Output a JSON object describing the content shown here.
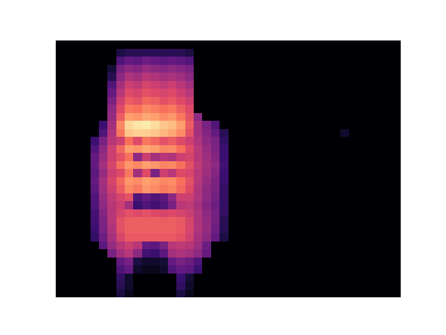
{
  "chart_data": {
    "type": "heatmap",
    "color": "magma",
    "tick_labels": false,
    "zlim": [
      0,
      100
    ],
    "cells": [
      [
        0,
        0,
        0,
        0,
        0,
        0,
        0,
        0,
        0,
        0,
        0,
        0,
        0,
        0,
        0,
        0,
        0,
        0,
        0,
        0,
        0,
        0,
        0,
        0,
        0,
        0,
        0,
        0,
        0,
        0,
        0,
        0,
        0,
        0,
        0,
        0,
        0,
        0,
        0,
        0
      ],
      [
        0,
        0,
        0,
        0,
        0,
        0,
        0,
        12,
        15,
        15,
        15,
        15,
        15,
        15,
        15,
        12,
        0,
        0,
        0,
        0,
        0,
        0,
        0,
        0,
        0,
        0,
        0,
        0,
        0,
        0,
        0,
        0,
        0,
        0,
        0,
        0,
        0,
        0,
        0,
        0
      ],
      [
        0,
        0,
        0,
        0,
        0,
        0,
        0,
        25,
        30,
        28,
        32,
        30,
        28,
        30,
        28,
        25,
        0,
        0,
        0,
        0,
        0,
        0,
        0,
        0,
        0,
        0,
        0,
        0,
        0,
        0,
        0,
        0,
        0,
        0,
        0,
        0,
        0,
        0,
        0,
        0
      ],
      [
        0,
        0,
        0,
        0,
        0,
        0,
        10,
        35,
        40,
        38,
        42,
        40,
        38,
        40,
        38,
        35,
        0,
        0,
        0,
        0,
        0,
        0,
        0,
        0,
        0,
        0,
        0,
        0,
        0,
        0,
        0,
        0,
        0,
        0,
        0,
        0,
        0,
        0,
        0,
        0
      ],
      [
        0,
        0,
        0,
        0,
        0,
        0,
        15,
        40,
        48,
        45,
        50,
        48,
        45,
        47,
        44,
        40,
        0,
        0,
        0,
        0,
        0,
        0,
        0,
        0,
        0,
        0,
        0,
        0,
        0,
        0,
        0,
        0,
        0,
        0,
        0,
        0,
        0,
        0,
        0,
        0
      ],
      [
        0,
        0,
        0,
        0,
        0,
        0,
        25,
        45,
        55,
        52,
        58,
        55,
        52,
        55,
        50,
        45,
        0,
        0,
        0,
        0,
        0,
        0,
        0,
        0,
        0,
        0,
        0,
        0,
        0,
        0,
        0,
        0,
        0,
        0,
        0,
        0,
        0,
        0,
        0,
        0
      ],
      [
        0,
        0,
        0,
        0,
        0,
        0,
        30,
        50,
        60,
        58,
        62,
        60,
        58,
        60,
        55,
        50,
        0,
        0,
        0,
        0,
        0,
        0,
        0,
        0,
        0,
        0,
        0,
        0,
        0,
        0,
        0,
        0,
        0,
        0,
        0,
        0,
        0,
        0,
        0,
        0
      ],
      [
        0,
        0,
        0,
        0,
        0,
        0,
        35,
        55,
        65,
        62,
        68,
        66,
        62,
        64,
        60,
        55,
        0,
        0,
        0,
        0,
        0,
        0,
        0,
        0,
        0,
        0,
        0,
        0,
        0,
        0,
        0,
        0,
        0,
        0,
        0,
        0,
        0,
        0,
        0,
        0
      ],
      [
        0,
        0,
        0,
        0,
        0,
        0,
        40,
        60,
        72,
        70,
        75,
        73,
        70,
        72,
        66,
        60,
        0,
        0,
        0,
        0,
        0,
        0,
        0,
        0,
        0,
        0,
        0,
        0,
        0,
        0,
        0,
        0,
        0,
        0,
        0,
        0,
        0,
        0,
        0,
        0
      ],
      [
        0,
        0,
        0,
        0,
        0,
        0,
        42,
        65,
        80,
        78,
        82,
        80,
        76,
        78,
        72,
        62,
        40,
        0,
        0,
        0,
        0,
        0,
        0,
        0,
        0,
        0,
        0,
        0,
        0,
        0,
        0,
        0,
        0,
        0,
        0,
        0,
        0,
        0,
        0,
        0
      ],
      [
        0,
        0,
        0,
        0,
        0,
        20,
        45,
        75,
        92,
        95,
        96,
        93,
        88,
        86,
        80,
        65,
        45,
        35,
        25,
        0,
        0,
        0,
        0,
        0,
        0,
        0,
        0,
        0,
        0,
        0,
        0,
        0,
        0,
        0,
        0,
        0,
        0,
        0,
        0,
        0
      ],
      [
        0,
        0,
        0,
        0,
        0,
        25,
        48,
        72,
        88,
        90,
        90,
        88,
        85,
        82,
        76,
        62,
        45,
        38,
        30,
        15,
        0,
        0,
        0,
        0,
        0,
        0,
        0,
        0,
        0,
        0,
        0,
        0,
        0,
        8,
        0,
        0,
        0,
        0,
        0,
        0
      ],
      [
        0,
        0,
        0,
        0,
        20,
        35,
        50,
        55,
        70,
        60,
        72,
        68,
        62,
        65,
        60,
        55,
        48,
        40,
        35,
        18,
        0,
        0,
        0,
        0,
        0,
        0,
        0,
        0,
        0,
        0,
        0,
        0,
        0,
        0,
        0,
        0,
        0,
        0,
        0,
        0
      ],
      [
        0,
        0,
        0,
        0,
        25,
        40,
        55,
        68,
        80,
        78,
        82,
        80,
        75,
        76,
        70,
        60,
        50,
        42,
        36,
        20,
        0,
        0,
        0,
        0,
        0,
        0,
        0,
        0,
        0,
        0,
        0,
        0,
        0,
        0,
        0,
        0,
        0,
        0,
        0,
        0
      ],
      [
        0,
        0,
        0,
        0,
        30,
        42,
        55,
        62,
        70,
        40,
        55,
        45,
        50,
        48,
        55,
        58,
        50,
        44,
        38,
        20,
        0,
        0,
        0,
        0,
        0,
        0,
        0,
        0,
        0,
        0,
        0,
        0,
        0,
        0,
        0,
        0,
        0,
        0,
        0,
        0
      ],
      [
        0,
        0,
        0,
        0,
        30,
        45,
        58,
        70,
        78,
        75,
        80,
        78,
        74,
        75,
        70,
        62,
        52,
        45,
        40,
        22,
        0,
        0,
        0,
        0,
        0,
        0,
        0,
        0,
        0,
        0,
        0,
        0,
        0,
        0,
        0,
        0,
        0,
        0,
        0,
        0
      ],
      [
        0,
        0,
        0,
        0,
        28,
        42,
        55,
        60,
        72,
        45,
        60,
        35,
        55,
        50,
        60,
        58,
        50,
        44,
        38,
        20,
        0,
        0,
        0,
        0,
        0,
        0,
        0,
        0,
        0,
        0,
        0,
        0,
        0,
        0,
        0,
        0,
        0,
        0,
        0,
        0
      ],
      [
        0,
        0,
        0,
        0,
        30,
        45,
        58,
        68,
        78,
        76,
        80,
        78,
        75,
        76,
        70,
        62,
        50,
        42,
        36,
        20,
        0,
        0,
        0,
        0,
        0,
        0,
        0,
        0,
        0,
        0,
        0,
        0,
        0,
        0,
        0,
        0,
        0,
        0,
        0,
        0
      ],
      [
        0,
        0,
        0,
        0,
        28,
        44,
        55,
        65,
        75,
        72,
        78,
        76,
        72,
        74,
        68,
        60,
        48,
        40,
        35,
        18,
        0,
        0,
        0,
        0,
        0,
        0,
        0,
        0,
        0,
        0,
        0,
        0,
        0,
        0,
        0,
        0,
        0,
        0,
        0,
        0
      ],
      [
        0,
        0,
        0,
        0,
        25,
        42,
        52,
        58,
        62,
        25,
        30,
        25,
        28,
        40,
        55,
        55,
        48,
        40,
        34,
        18,
        0,
        0,
        0,
        0,
        0,
        0,
        0,
        0,
        0,
        0,
        0,
        0,
        0,
        0,
        0,
        0,
        0,
        0,
        0,
        0
      ],
      [
        0,
        0,
        0,
        0,
        25,
        40,
        50,
        55,
        45,
        20,
        25,
        22,
        25,
        35,
        50,
        52,
        46,
        38,
        32,
        18,
        0,
        0,
        0,
        0,
        0,
        0,
        0,
        0,
        0,
        0,
        0,
        0,
        0,
        0,
        0,
        0,
        0,
        0,
        0,
        0
      ],
      [
        0,
        0,
        0,
        0,
        22,
        38,
        50,
        58,
        62,
        60,
        62,
        60,
        58,
        60,
        58,
        54,
        48,
        40,
        34,
        18,
        0,
        0,
        0,
        0,
        0,
        0,
        0,
        0,
        0,
        0,
        0,
        0,
        0,
        0,
        0,
        0,
        0,
        0,
        0,
        0
      ],
      [
        0,
        0,
        0,
        0,
        22,
        36,
        50,
        62,
        66,
        66,
        66,
        66,
        65,
        66,
        64,
        58,
        48,
        42,
        34,
        15,
        0,
        0,
        0,
        0,
        0,
        0,
        0,
        0,
        0,
        0,
        0,
        0,
        0,
        0,
        0,
        0,
        0,
        0,
        0,
        0
      ],
      [
        0,
        0,
        0,
        0,
        20,
        35,
        48,
        62,
        66,
        66,
        66,
        66,
        66,
        66,
        64,
        58,
        48,
        42,
        32,
        15,
        0,
        0,
        0,
        0,
        0,
        0,
        0,
        0,
        0,
        0,
        0,
        0,
        0,
        0,
        0,
        0,
        0,
        0,
        0,
        0
      ],
      [
        0,
        0,
        0,
        0,
        18,
        32,
        46,
        58,
        64,
        64,
        64,
        64,
        64,
        64,
        62,
        56,
        46,
        40,
        30,
        12,
        0,
        0,
        0,
        0,
        0,
        0,
        0,
        0,
        0,
        0,
        0,
        0,
        0,
        0,
        0,
        0,
        0,
        0,
        0,
        0
      ],
      [
        0,
        0,
        0,
        0,
        0,
        28,
        42,
        50,
        55,
        50,
        30,
        28,
        35,
        50,
        52,
        50,
        44,
        32,
        0,
        0,
        0,
        0,
        0,
        0,
        0,
        0,
        0,
        0,
        0,
        0,
        0,
        0,
        0,
        0,
        0,
        0,
        0,
        0,
        0,
        0
      ],
      [
        0,
        0,
        0,
        0,
        0,
        0,
        35,
        45,
        50,
        40,
        22,
        20,
        28,
        45,
        48,
        45,
        40,
        30,
        0,
        0,
        0,
        0,
        0,
        0,
        0,
        0,
        0,
        0,
        0,
        0,
        0,
        0,
        0,
        0,
        0,
        0,
        0,
        0,
        0,
        0
      ],
      [
        0,
        0,
        0,
        0,
        0,
        0,
        0,
        30,
        35,
        12,
        8,
        8,
        10,
        30,
        35,
        32,
        25,
        0,
        0,
        0,
        0,
        0,
        0,
        0,
        0,
        0,
        0,
        0,
        0,
        0,
        0,
        0,
        0,
        0,
        0,
        0,
        0,
        0,
        0,
        0
      ],
      [
        0,
        0,
        0,
        0,
        0,
        0,
        0,
        25,
        30,
        8,
        5,
        5,
        8,
        25,
        30,
        28,
        20,
        0,
        0,
        0,
        0,
        0,
        0,
        0,
        0,
        0,
        0,
        0,
        0,
        0,
        0,
        0,
        0,
        0,
        0,
        0,
        0,
        0,
        0,
        0
      ],
      [
        0,
        0,
        0,
        0,
        0,
        0,
        0,
        18,
        8,
        0,
        0,
        0,
        0,
        0,
        20,
        10,
        0,
        0,
        0,
        0,
        0,
        0,
        0,
        0,
        0,
        0,
        0,
        0,
        0,
        0,
        0,
        0,
        0,
        0,
        0,
        0,
        0,
        0,
        0,
        0
      ],
      [
        0,
        0,
        0,
        0,
        0,
        0,
        0,
        15,
        8,
        0,
        0,
        0,
        0,
        0,
        18,
        8,
        0,
        0,
        0,
        0,
        0,
        0,
        0,
        0,
        0,
        0,
        0,
        0,
        0,
        0,
        0,
        0,
        0,
        0,
        0,
        0,
        0,
        0,
        0,
        0
      ],
      [
        0,
        0,
        0,
        0,
        0,
        0,
        0,
        12,
        5,
        0,
        0,
        0,
        0,
        0,
        12,
        5,
        0,
        0,
        0,
        0,
        0,
        0,
        0,
        0,
        0,
        0,
        0,
        0,
        0,
        0,
        0,
        0,
        0,
        0,
        0,
        0,
        0,
        0,
        0,
        0
      ]
    ]
  }
}
